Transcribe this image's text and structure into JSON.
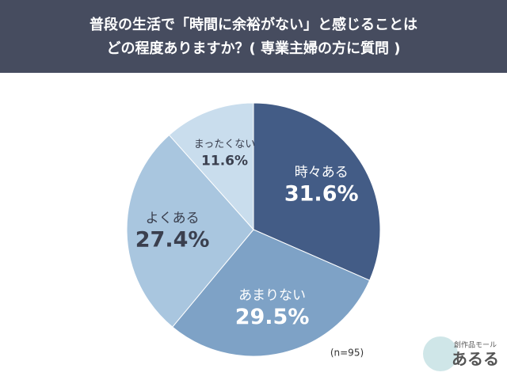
{
  "chart_data": {
    "type": "pie",
    "title": [
      "普段の生活で「時間に余裕がない」と感じることは",
      "どの程度ありますか？( 専業主婦の方に質問 )"
    ],
    "categories": [
      "時々ある",
      "あまりない",
      "よくある",
      "まったくない"
    ],
    "values": [
      31.6,
      29.5,
      27.4,
      11.6
    ],
    "value_labels": [
      "31.6%",
      "29.5%",
      "27.4%",
      "11.6%"
    ],
    "colors": [
      "#435c86",
      "#7ea2c6",
      "#a9c6df",
      "#c9dded"
    ],
    "label_colors": [
      "#ffffff",
      "#ffffff",
      "#3a3f4e",
      "#3a3f4e"
    ],
    "note": "(n=95)"
  },
  "logo": {
    "tagline": "創作品モール",
    "name": "あるる"
  }
}
